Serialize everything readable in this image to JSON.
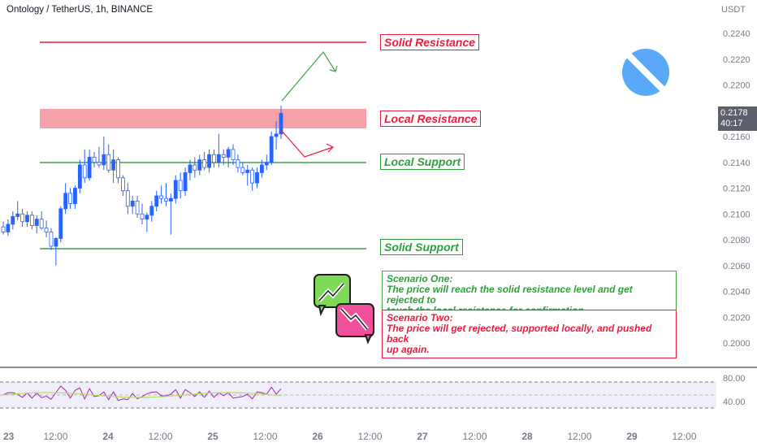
{
  "header": {
    "title": "Ontology / TetherUS, 1h, BINANCE",
    "currency": "USDT"
  },
  "price_tag": {
    "price": "0.2178",
    "countdown": "40:17"
  },
  "levels": {
    "solid_resistance": "Solid Resistance",
    "local_resistance": "Local Resistance",
    "local_support": "Local Support",
    "solid_support": "Solid Support"
  },
  "scenarios": {
    "one": {
      "title": "Scenario One:",
      "line1": "The price will reach the solid resistance level and get rejected to",
      "line2": "touch the local resistance for confirmation."
    },
    "two": {
      "title": "Scenario Two:",
      "line1": "The price will get rejected, supported locally, and pushed back",
      "line2": "up again."
    }
  },
  "colors": {
    "up": "#2962ff",
    "resistance": "#e91e3f",
    "support": "#43a047",
    "zone": "#f7a1ab",
    "logo": "#5aa9f7"
  },
  "chart_data": {
    "type": "candlestick",
    "y_axis": {
      "ticks": [
        "0.2240",
        "0.2220",
        "0.2200",
        "0.2180",
        "0.2160",
        "0.2140",
        "0.2120",
        "0.2100",
        "0.2080",
        "0.2060",
        "0.2040",
        "0.2020",
        "0.2000"
      ],
      "range": [
        0.199,
        0.2252
      ]
    },
    "x_axis": {
      "ticks": [
        "23",
        "12:00",
        "24",
        "12:00",
        "25",
        "12:00",
        "26",
        "12:00",
        "27",
        "12:00",
        "28",
        "12:00",
        "29",
        "12:00"
      ]
    },
    "levels": {
      "solid_resistance": 0.2231,
      "local_resistance_zone": [
        0.2163,
        0.2178
      ],
      "local_support": 0.214,
      "solid_support": 0.2073
    },
    "candles": [
      [
        0.209,
        0.2094,
        0.2084,
        0.2086
      ],
      [
        0.2086,
        0.2096,
        0.2083,
        0.2092
      ],
      [
        0.2092,
        0.2102,
        0.2088,
        0.2098
      ],
      [
        0.2098,
        0.211,
        0.2095,
        0.21
      ],
      [
        0.21,
        0.2104,
        0.209,
        0.2094
      ],
      [
        0.2094,
        0.2102,
        0.209,
        0.2099
      ],
      [
        0.2099,
        0.2102,
        0.2088,
        0.2091
      ],
      [
        0.2091,
        0.2099,
        0.2085,
        0.2096
      ],
      [
        0.2096,
        0.2102,
        0.2088,
        0.2089
      ],
      [
        0.2089,
        0.2095,
        0.2082,
        0.2086
      ],
      [
        0.2086,
        0.2089,
        0.2072,
        0.2075
      ],
      [
        0.2075,
        0.2082,
        0.206,
        0.2081
      ],
      [
        0.2081,
        0.2106,
        0.2078,
        0.2104
      ],
      [
        0.2104,
        0.2124,
        0.21,
        0.2116
      ],
      [
        0.2116,
        0.212,
        0.2104,
        0.2108
      ],
      [
        0.2108,
        0.2122,
        0.2104,
        0.212
      ],
      [
        0.212,
        0.2142,
        0.2116,
        0.2138
      ],
      [
        0.2138,
        0.215,
        0.2124,
        0.2128
      ],
      [
        0.2128,
        0.215,
        0.2126,
        0.2144
      ],
      [
        0.2144,
        0.2148,
        0.2136,
        0.214
      ],
      [
        0.214,
        0.2152,
        0.2136,
        0.2138
      ],
      [
        0.2138,
        0.216,
        0.2134,
        0.2146
      ],
      [
        0.2146,
        0.2154,
        0.2132,
        0.2134
      ],
      [
        0.2134,
        0.215,
        0.2124,
        0.2142
      ],
      [
        0.2142,
        0.2144,
        0.2124,
        0.2128
      ],
      [
        0.2128,
        0.213,
        0.2114,
        0.2118
      ],
      [
        0.2118,
        0.2124,
        0.21,
        0.2106
      ],
      [
        0.2106,
        0.2114,
        0.21,
        0.211
      ],
      [
        0.211,
        0.2114,
        0.2097,
        0.21
      ],
      [
        0.21,
        0.2108,
        0.2092,
        0.2096
      ],
      [
        0.2096,
        0.2101,
        0.2086,
        0.2099
      ],
      [
        0.2099,
        0.211,
        0.2094,
        0.2106
      ],
      [
        0.2106,
        0.2118,
        0.2102,
        0.2114
      ],
      [
        0.2114,
        0.2122,
        0.2108,
        0.2112
      ],
      [
        0.2112,
        0.2124,
        0.2106,
        0.211
      ],
      [
        0.211,
        0.2116,
        0.2084,
        0.2112
      ],
      [
        0.2112,
        0.213,
        0.2108,
        0.2126
      ],
      [
        0.2126,
        0.2132,
        0.2112,
        0.2118
      ],
      [
        0.2118,
        0.2136,
        0.2114,
        0.2132
      ],
      [
        0.2132,
        0.2142,
        0.2126,
        0.2138
      ],
      [
        0.2138,
        0.2144,
        0.2128,
        0.2134
      ],
      [
        0.2134,
        0.2146,
        0.213,
        0.2142
      ],
      [
        0.2142,
        0.2148,
        0.2134,
        0.2136
      ],
      [
        0.2136,
        0.215,
        0.2132,
        0.2146
      ],
      [
        0.2146,
        0.215,
        0.2136,
        0.214
      ],
      [
        0.214,
        0.2162,
        0.2136,
        0.2146
      ],
      [
        0.2146,
        0.215,
        0.2138,
        0.2144
      ],
      [
        0.2144,
        0.2152,
        0.2136,
        0.215
      ],
      [
        0.215,
        0.2154,
        0.2138,
        0.2142
      ],
      [
        0.2142,
        0.2146,
        0.2132,
        0.2136
      ],
      [
        0.2136,
        0.214,
        0.213,
        0.2132
      ],
      [
        0.2132,
        0.2138,
        0.2122,
        0.2134
      ],
      [
        0.2134,
        0.2136,
        0.2118,
        0.2124
      ],
      [
        0.2124,
        0.2136,
        0.212,
        0.2132
      ],
      [
        0.2132,
        0.2142,
        0.2128,
        0.2138
      ],
      [
        0.2138,
        0.2146,
        0.2134,
        0.214
      ],
      [
        0.214,
        0.2164,
        0.2138,
        0.216
      ],
      [
        0.216,
        0.2172,
        0.215,
        0.2162
      ],
      [
        0.2162,
        0.2184,
        0.2158,
        0.2178
      ]
    ]
  },
  "rsi": {
    "ticks": [
      "80.00",
      "40.00"
    ],
    "overbought": 70,
    "oversold": 30
  }
}
